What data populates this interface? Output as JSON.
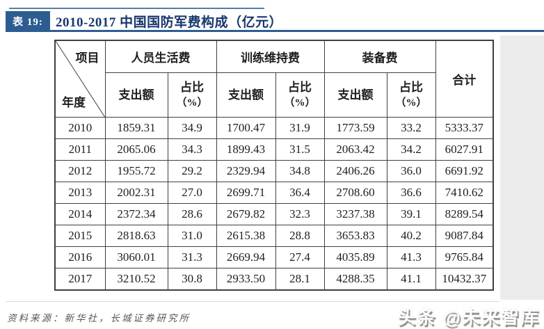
{
  "header": {
    "table_label": "表 19:",
    "title": "2010-2017 中国国防军费构成（亿元）"
  },
  "table": {
    "corner_top": "项目",
    "corner_bottom": "年度",
    "groups": [
      "人员生活费",
      "训练维持费",
      "装备费"
    ],
    "sub_amount": "支出额",
    "sub_share": "占比",
    "sub_share_unit": "（%）",
    "total_header": "合计",
    "rows": [
      {
        "year": "2010",
        "cells": [
          "1859.31",
          "34.9",
          "1700.47",
          "31.9",
          "1773.59",
          "33.2",
          "5333.37"
        ]
      },
      {
        "year": "2011",
        "cells": [
          "2065.06",
          "34.3",
          "1899.43",
          "31.5",
          "2063.42",
          "34.2",
          "6027.91"
        ]
      },
      {
        "year": "2012",
        "cells": [
          "1955.72",
          "29.2",
          "2329.94",
          "34.8",
          "2406.26",
          "36.0",
          "6691.92"
        ]
      },
      {
        "year": "2013",
        "cells": [
          "2002.31",
          "27.0",
          "2699.71",
          "36.4",
          "2708.60",
          "36.6",
          "7410.62"
        ]
      },
      {
        "year": "2014",
        "cells": [
          "2372.34",
          "28.6",
          "2679.82",
          "32.3",
          "3237.38",
          "39.1",
          "8289.54"
        ]
      },
      {
        "year": "2015",
        "cells": [
          "2818.63",
          "31.0",
          "2615.38",
          "28.8",
          "3653.83",
          "40.2",
          "9087.84"
        ]
      },
      {
        "year": "2016",
        "cells": [
          "3060.01",
          "31.3",
          "2669.94",
          "27.4",
          "4035.89",
          "41.3",
          "9765.84"
        ]
      },
      {
        "year": "2017",
        "cells": [
          "3210.52",
          "30.8",
          "2933.50",
          "28.1",
          "4288.35",
          "41.1",
          "10432.37"
        ]
      }
    ]
  },
  "footer": {
    "source_note": "资料来源：新华社，长城证券研究所",
    "watermark": "头条 @未来智库"
  },
  "colors": {
    "accent_blue": "#2d5d90",
    "title_navy": "#17366e",
    "table_border": "#3f3f3f",
    "margin_gray": "#ececec",
    "source_gray": "#575757"
  },
  "chart_data": {
    "type": "table",
    "title": "2010-2017 中国国防军费构成（亿元）",
    "columns": [
      "年度",
      "人员生活费-支出额",
      "人员生活费-占比（%）",
      "训练维持费-支出额",
      "训练维持费-占比（%）",
      "装备费-支出额",
      "装备费-占比（%）",
      "合计"
    ],
    "rows": [
      [
        "2010",
        1859.31,
        34.9,
        1700.47,
        31.9,
        1773.59,
        33.2,
        5333.37
      ],
      [
        "2011",
        2065.06,
        34.3,
        1899.43,
        31.5,
        2063.42,
        34.2,
        6027.91
      ],
      [
        "2012",
        1955.72,
        29.2,
        2329.94,
        34.8,
        2406.26,
        36.0,
        6691.92
      ],
      [
        "2013",
        2002.31,
        27.0,
        2699.71,
        36.4,
        2708.6,
        36.6,
        7410.62
      ],
      [
        "2014",
        2372.34,
        28.6,
        2679.82,
        32.3,
        3237.38,
        39.1,
        8289.54
      ],
      [
        "2015",
        2818.63,
        31.0,
        2615.38,
        28.8,
        3653.83,
        40.2,
        9087.84
      ],
      [
        "2016",
        3060.01,
        31.3,
        2669.94,
        27.4,
        4035.89,
        41.3,
        9765.84
      ],
      [
        "2017",
        3210.52,
        30.8,
        2933.5,
        28.1,
        4288.35,
        41.1,
        10432.37
      ]
    ]
  }
}
